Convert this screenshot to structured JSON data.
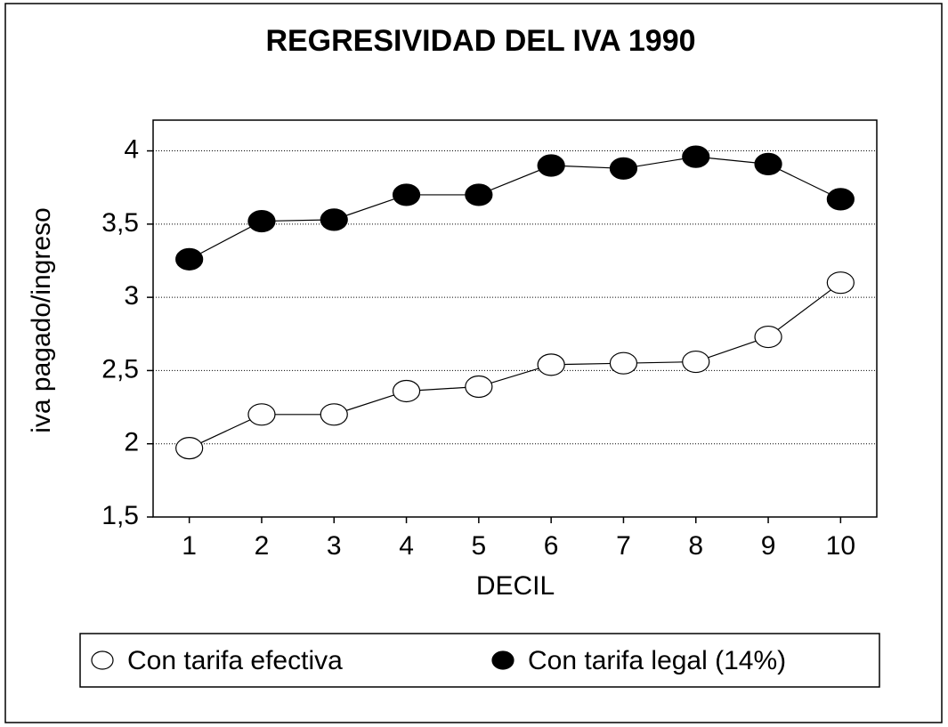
{
  "chart_data": {
    "type": "line",
    "title": "REGRESIVIDAD DEL IVA 1990",
    "x_label": "DECIL",
    "y_label": "iva pagado/ingreso",
    "categories": [
      "1",
      "2",
      "3",
      "4",
      "5",
      "6",
      "7",
      "8",
      "9",
      "10"
    ],
    "series": [
      {
        "name": "Con tarifa efectiva",
        "color": "#ffffff",
        "values": [
          1.97,
          2.2,
          2.2,
          2.36,
          2.39,
          2.54,
          2.55,
          2.56,
          2.73,
          3.1
        ]
      },
      {
        "name": "Con tarifa legal (14%)",
        "color": "#000000",
        "values": [
          3.26,
          3.52,
          3.53,
          3.7,
          3.7,
          3.9,
          3.88,
          3.96,
          3.91,
          3.67
        ]
      }
    ],
    "ylim": [
      1.5,
      4.21
    ],
    "yticks": [
      {
        "value": 1.5,
        "label": "1,5"
      },
      2,
      {
        "value": 2.5,
        "label": "2,5"
      },
      3,
      {
        "value": 3.5,
        "label": "3,5"
      },
      4
    ],
    "grid": true,
    "legend": "bottom"
  }
}
